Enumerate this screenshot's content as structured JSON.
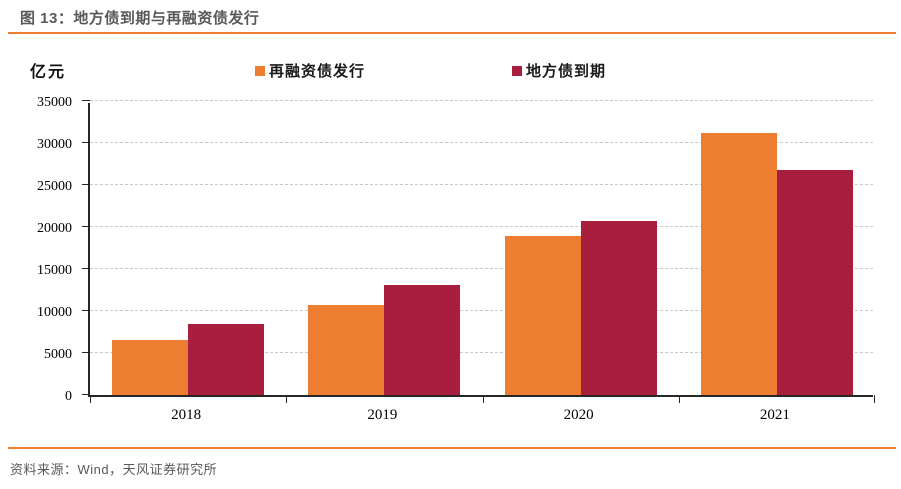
{
  "header": {
    "figure_label": "图 13：",
    "figure_title": "地方债到期与再融资债发行"
  },
  "unit_label": "亿元",
  "footer": {
    "source_text": "资料来源：Wind，天风证券研究所"
  },
  "colors": {
    "accent_orange": "#ED7D31",
    "series_refinancing_orange": "#ED7D31",
    "series_maturity_crimson": "#A91D3E",
    "title_gray": "#595959",
    "grid_gray": "#C9C9C9",
    "axis_black": "#262626"
  },
  "chart_data": {
    "type": "bar",
    "title": "地方债到期与再融资债发行",
    "ylabel": "亿元",
    "categories": [
      "2018",
      "2019",
      "2020",
      "2021"
    ],
    "series": [
      {
        "name": "再融资债发行",
        "color": "#ED7D31",
        "values": [
          6550,
          10700,
          18900,
          31250
        ]
      },
      {
        "name": "地方债到期",
        "color": "#A91D3E",
        "values": [
          8450,
          13150,
          20750,
          26750
        ]
      }
    ],
    "ylim": [
      0,
      35000
    ],
    "yticks": [
      0,
      5000,
      10000,
      15000,
      20000,
      25000,
      30000,
      35000
    ],
    "grid": "horizontal-dashed",
    "legend_position": "top"
  }
}
